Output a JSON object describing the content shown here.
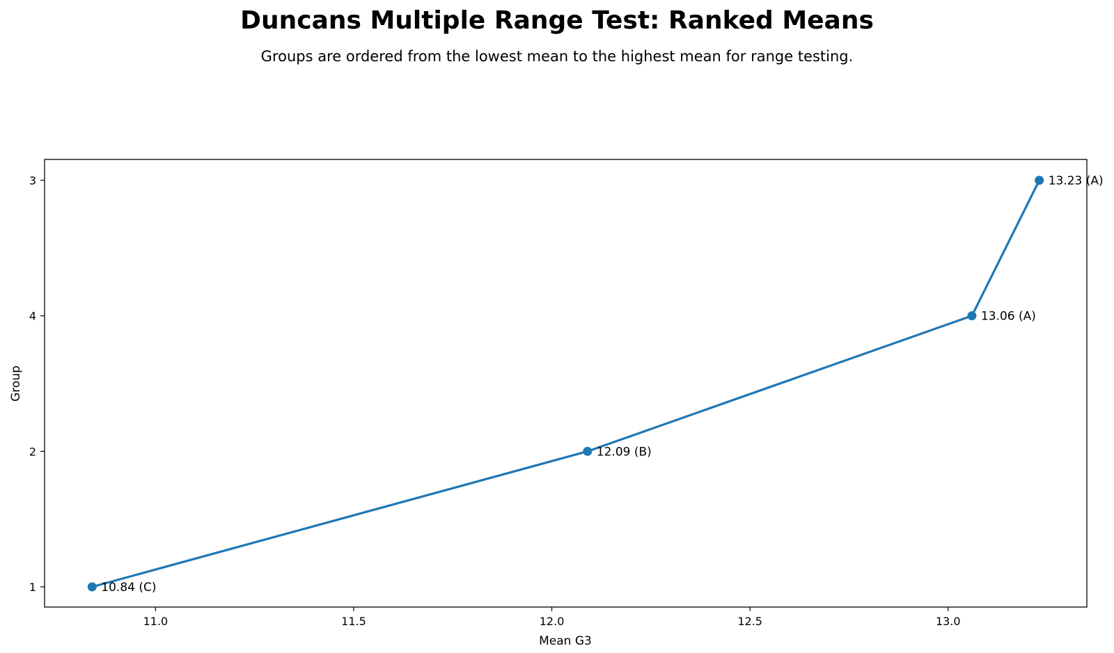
{
  "chart_data": {
    "type": "line",
    "title": "Duncans Multiple Range Test: Ranked Means",
    "subtitle": "Groups are ordered from the lowest mean to the highest mean for range testing.",
    "xlabel": "Mean G3",
    "ylabel": "Group",
    "xlim": [
      10.72,
      13.35
    ],
    "x_ticks": [
      {
        "value": 11.0,
        "label": "11.0"
      },
      {
        "value": 11.5,
        "label": "11.5"
      },
      {
        "value": 12.0,
        "label": "12.0"
      },
      {
        "value": 12.5,
        "label": "12.5"
      },
      {
        "value": 13.0,
        "label": "13.0"
      }
    ],
    "categories": [
      "1",
      "2",
      "4",
      "3"
    ],
    "series": [
      {
        "color": "#1f77b4",
        "points": [
          {
            "group": "1",
            "x": 10.84,
            "label": "10.84 (C)"
          },
          {
            "group": "2",
            "x": 12.09,
            "label": "12.09 (B)"
          },
          {
            "group": "4",
            "x": 13.06,
            "label": "13.06 (A)"
          },
          {
            "group": "3",
            "x": 13.23,
            "label": "13.23 (A)"
          }
        ]
      }
    ],
    "grid": false,
    "legend": "none"
  }
}
